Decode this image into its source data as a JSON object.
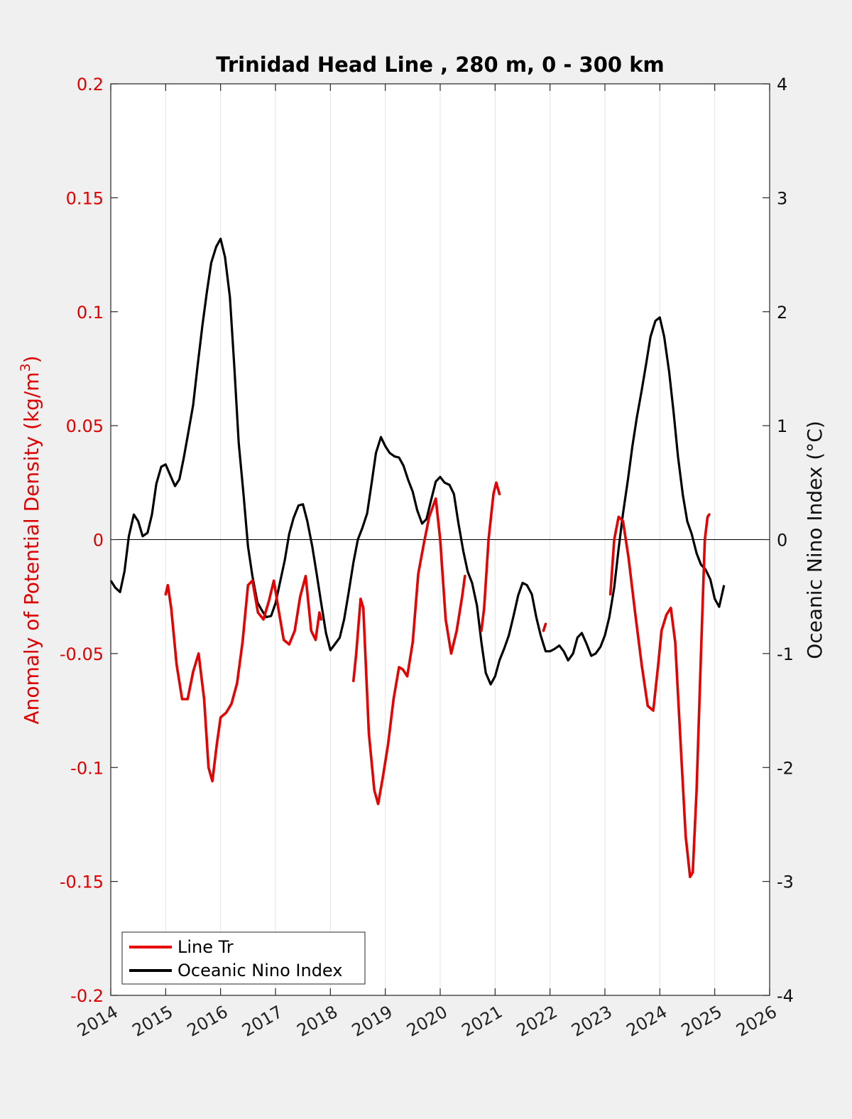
{
  "chart_data": {
    "type": "line",
    "title": "Trinidad Head Line , 280 m, 0 - 300 km",
    "ylabel_left": "Anomaly of Potential Density (kg/m",
    "ylabel_left_sup": "3",
    "ylabel_left_close": ")",
    "ylabel_right": "Oceanic Nino Index (°C)",
    "xlim": [
      2014,
      2026
    ],
    "ylim_left": [
      -0.2,
      0.2
    ],
    "ylim_right": [
      -4,
      4
    ],
    "x_ticks": [
      "2014",
      "2015",
      "2016",
      "2017",
      "2018",
      "2019",
      "2020",
      "2021",
      "2022",
      "2023",
      "2024",
      "2025",
      "2026"
    ],
    "y_left_ticks": [
      "0.2",
      "0.15",
      "0.1",
      "0.05",
      "0",
      "-0.05",
      "-0.1",
      "-0.15",
      "-0.2"
    ],
    "y_right_ticks": [
      "4",
      "3",
      "2",
      "1",
      "0",
      "-1",
      "-2",
      "-3",
      "-4"
    ],
    "grid": "x-vertical",
    "legend_position": "bottom-left",
    "colors": {
      "line_tr": "#e60000",
      "oni": "#000000",
      "left_axis": "#e00000"
    },
    "series": [
      {
        "name": "Line Tr",
        "axis": "left",
        "segments": [
          [
            [
              2015.0,
              -0.024
            ],
            [
              2015.04,
              -0.02
            ],
            [
              2015.1,
              -0.03
            ],
            [
              2015.2,
              -0.055
            ],
            [
              2015.3,
              -0.07
            ],
            [
              2015.4,
              -0.07
            ],
            [
              2015.5,
              -0.058
            ],
            [
              2015.6,
              -0.05
            ],
            [
              2015.7,
              -0.07
            ],
            [
              2015.78,
              -0.1
            ],
            [
              2015.85,
              -0.106
            ],
            [
              2015.93,
              -0.09
            ],
            [
              2016.0,
              -0.078
            ],
            [
              2016.1,
              -0.076
            ],
            [
              2016.2,
              -0.072
            ],
            [
              2016.3,
              -0.063
            ],
            [
              2016.4,
              -0.045
            ],
            [
              2016.5,
              -0.02
            ],
            [
              2016.58,
              -0.018
            ],
            [
              2016.68,
              -0.032
            ],
            [
              2016.78,
              -0.035
            ],
            [
              2016.88,
              -0.027
            ],
            [
              2016.97,
              -0.018
            ],
            [
              2017.05,
              -0.03
            ],
            [
              2017.15,
              -0.044
            ],
            [
              2017.25,
              -0.046
            ],
            [
              2017.35,
              -0.04
            ],
            [
              2017.45,
              -0.025
            ],
            [
              2017.55,
              -0.016
            ],
            [
              2017.65,
              -0.04
            ],
            [
              2017.73,
              -0.044
            ],
            [
              2017.8,
              -0.032
            ],
            [
              2017.83,
              -0.035
            ]
          ],
          [
            [
              2018.42,
              -0.062
            ],
            [
              2018.47,
              -0.05
            ],
            [
              2018.55,
              -0.026
            ],
            [
              2018.6,
              -0.03
            ],
            [
              2018.7,
              -0.085
            ],
            [
              2018.8,
              -0.11
            ],
            [
              2018.87,
              -0.116
            ],
            [
              2018.95,
              -0.105
            ],
            [
              2019.05,
              -0.09
            ],
            [
              2019.15,
              -0.07
            ],
            [
              2019.25,
              -0.056
            ],
            [
              2019.32,
              -0.057
            ],
            [
              2019.4,
              -0.06
            ],
            [
              2019.5,
              -0.045
            ],
            [
              2019.6,
              -0.015
            ],
            [
              2019.7,
              -0.002
            ],
            [
              2019.8,
              0.01
            ],
            [
              2019.92,
              0.018
            ],
            [
              2020.0,
              0.0
            ],
            [
              2020.1,
              -0.035
            ],
            [
              2020.2,
              -0.05
            ],
            [
              2020.3,
              -0.04
            ],
            [
              2020.4,
              -0.025
            ],
            [
              2020.45,
              -0.016
            ]
          ],
          [
            [
              2020.75,
              -0.04
            ],
            [
              2020.8,
              -0.03
            ],
            [
              2020.88,
              0.0
            ],
            [
              2020.97,
              0.02
            ],
            [
              2021.02,
              0.025
            ],
            [
              2021.08,
              0.02
            ]
          ],
          [
            [
              2021.88,
              -0.04
            ],
            [
              2021.92,
              -0.037
            ]
          ],
          [
            [
              2023.1,
              -0.024
            ],
            [
              2023.17,
              0.0
            ],
            [
              2023.25,
              0.01
            ],
            [
              2023.33,
              0.008
            ],
            [
              2023.43,
              -0.008
            ],
            [
              2023.55,
              -0.032
            ],
            [
              2023.67,
              -0.055
            ],
            [
              2023.78,
              -0.073
            ],
            [
              2023.88,
              -0.075
            ],
            [
              2023.97,
              -0.055
            ],
            [
              2024.03,
              -0.04
            ],
            [
              2024.12,
              -0.033
            ],
            [
              2024.2,
              -0.03
            ],
            [
              2024.28,
              -0.045
            ],
            [
              2024.38,
              -0.09
            ],
            [
              2024.47,
              -0.13
            ],
            [
              2024.55,
              -0.148
            ],
            [
              2024.6,
              -0.146
            ],
            [
              2024.67,
              -0.11
            ],
            [
              2024.75,
              -0.05
            ],
            [
              2024.82,
              0.0
            ],
            [
              2024.87,
              0.01
            ],
            [
              2024.9,
              0.011
            ]
          ]
        ]
      },
      {
        "name": "Oceanic Nino Index",
        "axis": "right",
        "points": [
          [
            2014.0,
            -0.36
          ],
          [
            2014.08,
            -0.42
          ],
          [
            2014.17,
            -0.46
          ],
          [
            2014.25,
            -0.28
          ],
          [
            2014.33,
            0.03
          ],
          [
            2014.42,
            0.22
          ],
          [
            2014.5,
            0.16
          ],
          [
            2014.58,
            0.03
          ],
          [
            2014.67,
            0.06
          ],
          [
            2014.75,
            0.22
          ],
          [
            2014.83,
            0.49
          ],
          [
            2014.92,
            0.64
          ],
          [
            2015.0,
            0.66
          ],
          [
            2015.08,
            0.57
          ],
          [
            2015.17,
            0.47
          ],
          [
            2015.25,
            0.53
          ],
          [
            2015.33,
            0.72
          ],
          [
            2015.42,
            0.96
          ],
          [
            2015.5,
            1.18
          ],
          [
            2015.58,
            1.52
          ],
          [
            2015.67,
            1.88
          ],
          [
            2015.75,
            2.17
          ],
          [
            2015.83,
            2.43
          ],
          [
            2015.92,
            2.57
          ],
          [
            2016.0,
            2.64
          ],
          [
            2016.08,
            2.48
          ],
          [
            2016.17,
            2.13
          ],
          [
            2016.25,
            1.52
          ],
          [
            2016.33,
            0.85
          ],
          [
            2016.42,
            0.39
          ],
          [
            2016.5,
            -0.06
          ],
          [
            2016.58,
            -0.32
          ],
          [
            2016.67,
            -0.55
          ],
          [
            2016.75,
            -0.62
          ],
          [
            2016.83,
            -0.68
          ],
          [
            2016.92,
            -0.67
          ],
          [
            2017.0,
            -0.56
          ],
          [
            2017.08,
            -0.38
          ],
          [
            2017.17,
            -0.18
          ],
          [
            2017.25,
            0.05
          ],
          [
            2017.33,
            0.19
          ],
          [
            2017.42,
            0.3
          ],
          [
            2017.5,
            0.31
          ],
          [
            2017.58,
            0.16
          ],
          [
            2017.67,
            -0.06
          ],
          [
            2017.75,
            -0.3
          ],
          [
            2017.83,
            -0.55
          ],
          [
            2017.92,
            -0.82
          ],
          [
            2018.0,
            -0.97
          ],
          [
            2018.08,
            -0.92
          ],
          [
            2018.17,
            -0.86
          ],
          [
            2018.25,
            -0.7
          ],
          [
            2018.33,
            -0.47
          ],
          [
            2018.42,
            -0.2
          ],
          [
            2018.5,
            0.0
          ],
          [
            2018.58,
            0.1
          ],
          [
            2018.67,
            0.23
          ],
          [
            2018.75,
            0.49
          ],
          [
            2018.83,
            0.76
          ],
          [
            2018.92,
            0.9
          ],
          [
            2019.0,
            0.82
          ],
          [
            2019.08,
            0.76
          ],
          [
            2019.17,
            0.73
          ],
          [
            2019.25,
            0.72
          ],
          [
            2019.33,
            0.65
          ],
          [
            2019.42,
            0.52
          ],
          [
            2019.5,
            0.42
          ],
          [
            2019.58,
            0.26
          ],
          [
            2019.67,
            0.14
          ],
          [
            2019.75,
            0.18
          ],
          [
            2019.83,
            0.34
          ],
          [
            2019.92,
            0.51
          ],
          [
            2020.0,
            0.55
          ],
          [
            2020.08,
            0.5
          ],
          [
            2020.17,
            0.48
          ],
          [
            2020.25,
            0.4
          ],
          [
            2020.33,
            0.15
          ],
          [
            2020.42,
            -0.1
          ],
          [
            2020.5,
            -0.28
          ],
          [
            2020.58,
            -0.38
          ],
          [
            2020.67,
            -0.58
          ],
          [
            2020.75,
            -0.9
          ],
          [
            2020.83,
            -1.17
          ],
          [
            2020.92,
            -1.27
          ],
          [
            2021.0,
            -1.2
          ],
          [
            2021.08,
            -1.06
          ],
          [
            2021.17,
            -0.95
          ],
          [
            2021.25,
            -0.84
          ],
          [
            2021.33,
            -0.68
          ],
          [
            2021.42,
            -0.49
          ],
          [
            2021.5,
            -0.38
          ],
          [
            2021.58,
            -0.4
          ],
          [
            2021.67,
            -0.48
          ],
          [
            2021.75,
            -0.68
          ],
          [
            2021.83,
            -0.84
          ],
          [
            2021.92,
            -0.98
          ],
          [
            2022.0,
            -0.98
          ],
          [
            2022.08,
            -0.96
          ],
          [
            2022.17,
            -0.93
          ],
          [
            2022.25,
            -0.98
          ],
          [
            2022.33,
            -1.06
          ],
          [
            2022.42,
            -1.0
          ],
          [
            2022.5,
            -0.86
          ],
          [
            2022.58,
            -0.82
          ],
          [
            2022.67,
            -0.92
          ],
          [
            2022.75,
            -1.02
          ],
          [
            2022.83,
            -1.0
          ],
          [
            2022.92,
            -0.94
          ],
          [
            2023.0,
            -0.84
          ],
          [
            2023.08,
            -0.68
          ],
          [
            2023.17,
            -0.42
          ],
          [
            2023.25,
            -0.08
          ],
          [
            2023.33,
            0.23
          ],
          [
            2023.42,
            0.53
          ],
          [
            2023.5,
            0.82
          ],
          [
            2023.58,
            1.07
          ],
          [
            2023.67,
            1.31
          ],
          [
            2023.75,
            1.54
          ],
          [
            2023.83,
            1.78
          ],
          [
            2023.92,
            1.92
          ],
          [
            2024.0,
            1.95
          ],
          [
            2024.08,
            1.78
          ],
          [
            2024.17,
            1.47
          ],
          [
            2024.25,
            1.12
          ],
          [
            2024.33,
            0.73
          ],
          [
            2024.42,
            0.39
          ],
          [
            2024.5,
            0.16
          ],
          [
            2024.58,
            0.05
          ],
          [
            2024.67,
            -0.12
          ],
          [
            2024.75,
            -0.22
          ],
          [
            2024.83,
            -0.26
          ],
          [
            2024.92,
            -0.35
          ],
          [
            2025.0,
            -0.52
          ],
          [
            2025.08,
            -0.59
          ],
          [
            2025.17,
            -0.4
          ]
        ]
      }
    ]
  }
}
